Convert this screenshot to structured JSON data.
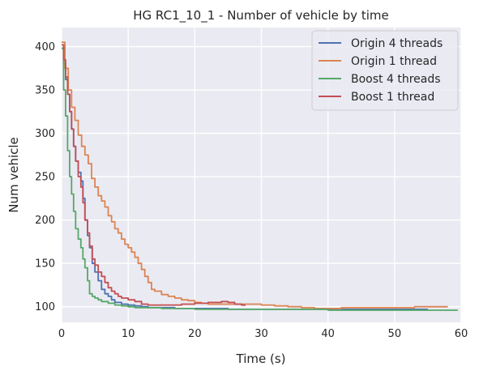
{
  "chart_data": {
    "type": "line",
    "title": "HG RC1_10_1 - Number of vehicle by time",
    "xlabel": "Time (s)",
    "ylabel": "Num vehicle",
    "xlim": [
      0,
      60
    ],
    "ylim": [
      82,
      422
    ],
    "xticks": [
      0,
      10,
      20,
      30,
      40,
      50,
      60
    ],
    "yticks": [
      100,
      150,
      200,
      250,
      300,
      350,
      400
    ],
    "grid": true,
    "legend": "top-right",
    "series": [
      {
        "name": "Origin 4 threads",
        "color": "#4c72b0",
        "points": [
          [
            0,
            398
          ],
          [
            0.3,
            380
          ],
          [
            0.6,
            362
          ],
          [
            0.9,
            345
          ],
          [
            1.2,
            325
          ],
          [
            1.5,
            305
          ],
          [
            1.8,
            285
          ],
          [
            2.1,
            268
          ],
          [
            2.5,
            255
          ],
          [
            2.9,
            245
          ],
          [
            3.2,
            225
          ],
          [
            3.5,
            200
          ],
          [
            3.9,
            182
          ],
          [
            4.2,
            168
          ],
          [
            4.6,
            150
          ],
          [
            5.0,
            140
          ],
          [
            5.5,
            130
          ],
          [
            6.0,
            120
          ],
          [
            6.5,
            115
          ],
          [
            7.0,
            112
          ],
          [
            7.5,
            108
          ],
          [
            8.0,
            105
          ],
          [
            9.0,
            103
          ],
          [
            10.0,
            102
          ],
          [
            11.0,
            101
          ],
          [
            12.0,
            100
          ],
          [
            13.0,
            99
          ],
          [
            15.0,
            99
          ],
          [
            17.0,
            98
          ],
          [
            20.0,
            98
          ],
          [
            25.0,
            97
          ],
          [
            30.0,
            97
          ],
          [
            35.0,
            97
          ],
          [
            40.0,
            97
          ],
          [
            45.0,
            97
          ],
          [
            50.0,
            97
          ],
          [
            55.0,
            97
          ]
        ]
      },
      {
        "name": "Origin 1 thread",
        "color": "#dd8452",
        "points": [
          [
            0,
            405
          ],
          [
            0.5,
            375
          ],
          [
            1.0,
            350
          ],
          [
            1.5,
            330
          ],
          [
            2.0,
            315
          ],
          [
            2.5,
            298
          ],
          [
            3.0,
            285
          ],
          [
            3.5,
            275
          ],
          [
            4.0,
            265
          ],
          [
            4.5,
            248
          ],
          [
            5.0,
            238
          ],
          [
            5.5,
            228
          ],
          [
            6.0,
            222
          ],
          [
            6.5,
            215
          ],
          [
            7.0,
            205
          ],
          [
            7.5,
            198
          ],
          [
            8.0,
            190
          ],
          [
            8.5,
            185
          ],
          [
            9.0,
            178
          ],
          [
            9.5,
            172
          ],
          [
            10.0,
            168
          ],
          [
            10.5,
            163
          ],
          [
            11.0,
            157
          ],
          [
            11.5,
            150
          ],
          [
            12.0,
            143
          ],
          [
            12.5,
            135
          ],
          [
            13.0,
            128
          ],
          [
            13.5,
            120
          ],
          [
            14.0,
            118
          ],
          [
            15.0,
            114
          ],
          [
            16.0,
            112
          ],
          [
            17.0,
            110
          ],
          [
            18.0,
            108
          ],
          [
            19.0,
            107
          ],
          [
            20.0,
            105
          ],
          [
            21.0,
            104
          ],
          [
            22.0,
            103
          ],
          [
            24.0,
            103
          ],
          [
            26.0,
            103
          ],
          [
            28.0,
            103
          ],
          [
            30.0,
            102
          ],
          [
            32.0,
            101
          ],
          [
            34.0,
            100
          ],
          [
            36.0,
            99
          ],
          [
            38.0,
            98
          ],
          [
            40.0,
            98
          ],
          [
            42.0,
            99
          ],
          [
            45.0,
            99
          ],
          [
            48.0,
            99
          ],
          [
            50.0,
            99
          ],
          [
            53.0,
            100
          ],
          [
            56.0,
            100
          ],
          [
            58.0,
            100
          ]
        ]
      },
      {
        "name": "Boost 4 threads",
        "color": "#55a868",
        "points": [
          [
            0,
            398
          ],
          [
            0.3,
            350
          ],
          [
            0.6,
            320
          ],
          [
            0.9,
            280
          ],
          [
            1.2,
            250
          ],
          [
            1.5,
            230
          ],
          [
            1.8,
            210
          ],
          [
            2.1,
            190
          ],
          [
            2.5,
            178
          ],
          [
            2.9,
            168
          ],
          [
            3.2,
            155
          ],
          [
            3.5,
            145
          ],
          [
            3.9,
            130
          ],
          [
            4.2,
            115
          ],
          [
            4.6,
            112
          ],
          [
            5.0,
            110
          ],
          [
            5.5,
            108
          ],
          [
            6.0,
            106
          ],
          [
            7.0,
            104
          ],
          [
            8.0,
            102
          ],
          [
            9.0,
            101
          ],
          [
            10.0,
            100
          ],
          [
            11.0,
            99
          ],
          [
            13.0,
            99
          ],
          [
            15.0,
            98
          ],
          [
            20.0,
            97
          ],
          [
            25.0,
            97
          ],
          [
            30.0,
            97
          ],
          [
            35.0,
            97
          ],
          [
            40.0,
            96
          ],
          [
            45.0,
            96
          ],
          [
            50.0,
            96
          ],
          [
            55.0,
            96
          ],
          [
            59.5,
            96
          ]
        ]
      },
      {
        "name": "Boost 1 thread",
        "color": "#c44e52",
        "points": [
          [
            0,
            402
          ],
          [
            0.3,
            385
          ],
          [
            0.6,
            365
          ],
          [
            0.9,
            345
          ],
          [
            1.2,
            325
          ],
          [
            1.5,
            305
          ],
          [
            1.8,
            285
          ],
          [
            2.1,
            268
          ],
          [
            2.5,
            250
          ],
          [
            2.9,
            238
          ],
          [
            3.2,
            220
          ],
          [
            3.5,
            200
          ],
          [
            3.9,
            185
          ],
          [
            4.2,
            170
          ],
          [
            4.6,
            155
          ],
          [
            5.0,
            148
          ],
          [
            5.5,
            140
          ],
          [
            6.0,
            135
          ],
          [
            6.5,
            128
          ],
          [
            7.0,
            122
          ],
          [
            7.5,
            118
          ],
          [
            8.0,
            115
          ],
          [
            8.5,
            112
          ],
          [
            9.0,
            110
          ],
          [
            10.0,
            108
          ],
          [
            11.0,
            106
          ],
          [
            12.0,
            103
          ],
          [
            13.0,
            102
          ],
          [
            15.0,
            102
          ],
          [
            18.0,
            103
          ],
          [
            20.0,
            104
          ],
          [
            22.0,
            105
          ],
          [
            24.0,
            106
          ],
          [
            25.0,
            105
          ],
          [
            26.0,
            103
          ],
          [
            27.0,
            102
          ],
          [
            27.5,
            101
          ]
        ]
      }
    ]
  }
}
